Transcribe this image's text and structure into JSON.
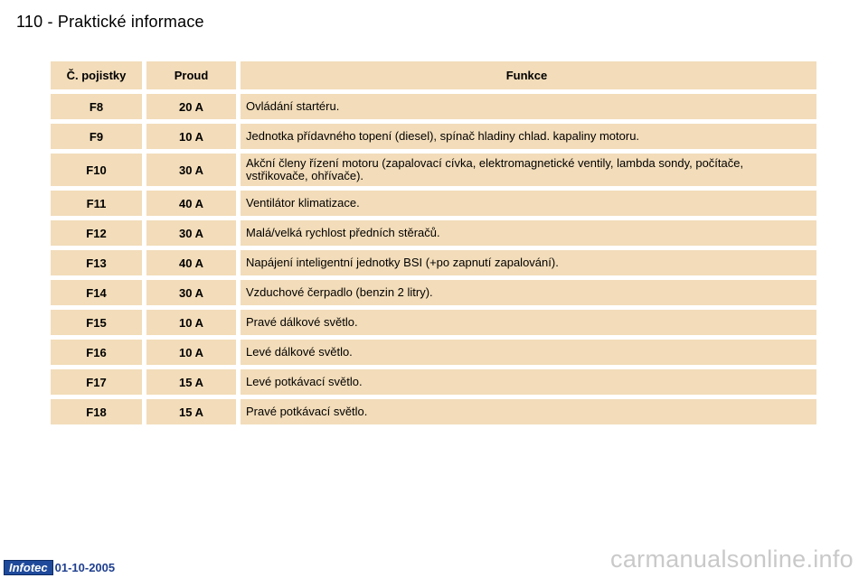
{
  "page": {
    "header": "110 - Praktické informace"
  },
  "table": {
    "headers": {
      "fuse_no": "Č. pojistky",
      "current": "Proud",
      "function": "Funkce"
    },
    "rows": [
      {
        "fuse": "F8",
        "current": "20 A",
        "function": "Ovládání startéru."
      },
      {
        "fuse": "F9",
        "current": "10 A",
        "function": "Jednotka přídavného topení (diesel), spínač hladiny chlad. kapaliny motoru."
      },
      {
        "fuse": "F10",
        "current": "30 A",
        "function": "Akční členy řízení motoru (zapalovací cívka, elektromagnetické ventily, lambda sondy, počítače, vstřikovače, ohřívače)."
      },
      {
        "fuse": "F11",
        "current": "40 A",
        "function": "Ventilátor klimatizace."
      },
      {
        "fuse": "F12",
        "current": "30 A",
        "function": "Malá/velká rychlost předních stěračů."
      },
      {
        "fuse": "F13",
        "current": "40 A",
        "function": "Napájení inteligentní jednotky BSI (+po zapnutí zapalování)."
      },
      {
        "fuse": "F14",
        "current": "30 A",
        "function": "Vzduchové čerpadlo (benzin 2 litry)."
      },
      {
        "fuse": "F15",
        "current": "10 A",
        "function": "Pravé dálkové světlo."
      },
      {
        "fuse": "F16",
        "current": "10 A",
        "function": "Levé dálkové světlo."
      },
      {
        "fuse": "F17",
        "current": "15 A",
        "function": "Levé potkávací světlo."
      },
      {
        "fuse": "F18",
        "current": "15 A",
        "function": "Pravé potkávací světlo."
      }
    ]
  },
  "footer": {
    "logo": "Infotec",
    "date": "01-10-2005"
  },
  "watermark": "carmanualsonline.info",
  "colors": {
    "cell_bg": "#f2dcb9",
    "logo_bg": "#1f4a9b",
    "date": "#1f3f8f",
    "watermark": "#c9c9c9"
  }
}
